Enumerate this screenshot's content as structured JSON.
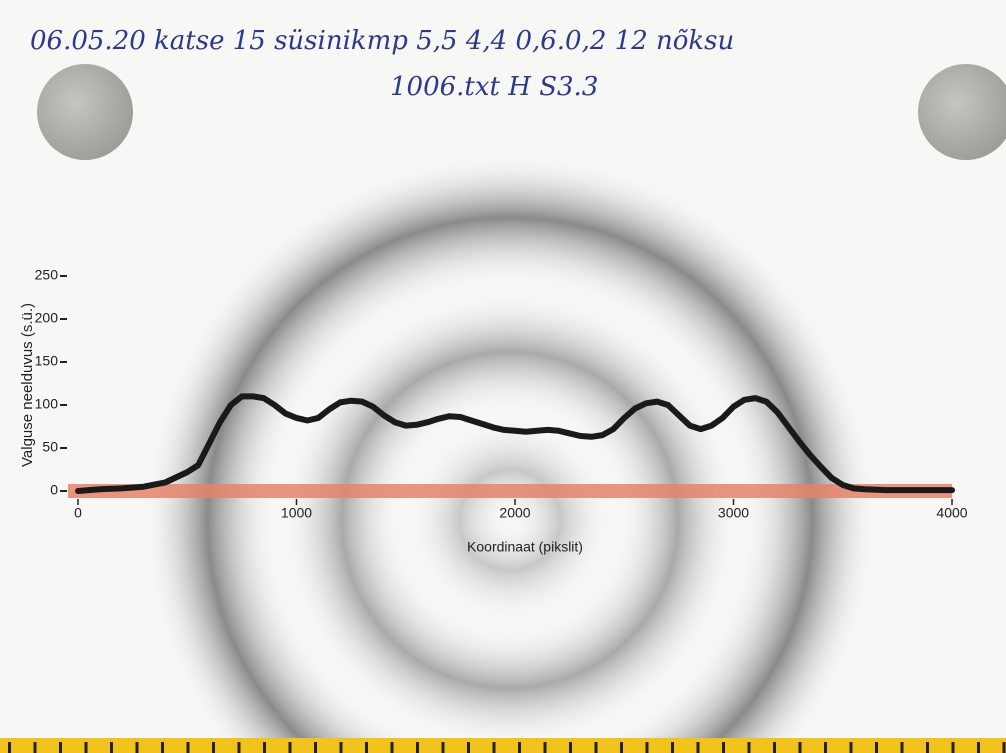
{
  "chart_data": {
    "type": "line",
    "annotations": [
      "06.05.20 katse 15 süsinikmp 5,5 4,4 0,6.0,2 12 nõksu",
      "1006.txt H S3.3"
    ],
    "x_label": "Koordinaat (pikslit)",
    "y_label": "Valguse neelduvus (s.ü.)",
    "xlim": [
      0,
      4000
    ],
    "xticks": [
      0,
      1000,
      2000,
      3000,
      4000
    ],
    "ylim": [
      0,
      250
    ],
    "yticks": [
      0,
      50,
      100,
      150,
      200,
      250
    ],
    "x": [
      0,
      100,
      200,
      300,
      400,
      500,
      550,
      600,
      650,
      700,
      750,
      800,
      850,
      900,
      950,
      1000,
      1050,
      1100,
      1150,
      1200,
      1250,
      1300,
      1350,
      1400,
      1450,
      1500,
      1550,
      1600,
      1650,
      1700,
      1750,
      1800,
      1850,
      1900,
      1950,
      2000,
      2050,
      2100,
      2150,
      2200,
      2250,
      2300,
      2350,
      2400,
      2450,
      2500,
      2550,
      2600,
      2650,
      2700,
      2750,
      2800,
      2850,
      2900,
      2950,
      3000,
      3050,
      3100,
      3150,
      3200,
      3250,
      3300,
      3350,
      3400,
      3450,
      3500,
      3550,
      3600,
      3700,
      3800,
      3900,
      4000
    ],
    "series": [
      {
        "color": "#1a1a1a",
        "values": [
          0,
          2,
          3,
          5,
          10,
          22,
          30,
          55,
          80,
          100,
          110,
          110,
          108,
          100,
          90,
          85,
          82,
          85,
          95,
          103,
          105,
          104,
          98,
          88,
          80,
          76,
          77,
          80,
          84,
          87,
          86,
          82,
          78,
          74,
          71,
          70,
          69,
          70,
          71,
          70,
          67,
          64,
          63,
          65,
          72,
          85,
          96,
          102,
          104,
          100,
          88,
          76,
          72,
          76,
          85,
          98,
          106,
          108,
          104,
          92,
          75,
          58,
          42,
          28,
          15,
          7,
          3,
          2,
          1,
          1,
          1,
          1
        ]
      }
    ]
  }
}
